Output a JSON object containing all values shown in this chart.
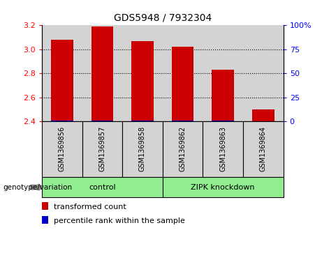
{
  "title": "GDS5948 / 7932304",
  "samples": [
    "GSM1369856",
    "GSM1369857",
    "GSM1369858",
    "GSM1369862",
    "GSM1369863",
    "GSM1369864"
  ],
  "red_values": [
    3.08,
    3.19,
    3.07,
    3.02,
    2.83,
    2.5
  ],
  "blue_values": [
    2.405,
    2.408,
    2.405,
    2.408,
    2.408,
    2.4
  ],
  "ylim": [
    2.4,
    3.2
  ],
  "yticks_left": [
    2.4,
    2.6,
    2.8,
    3.0,
    3.2
  ],
  "yticks_right": [
    0,
    25,
    50,
    75,
    100
  ],
  "group_label": "genotype/variation",
  "groups": [
    {
      "label": "control",
      "start": 0,
      "end": 3
    },
    {
      "label": "ZIPK knockdown",
      "start": 3,
      "end": 6
    }
  ],
  "legend_red": "transformed count",
  "legend_blue": "percentile rank within the sample",
  "bar_width": 0.55,
  "bar_color_red": "#cc0000",
  "bar_color_blue": "#0000cc",
  "sample_bg": "#d3d3d3",
  "group_color": "#90EE90",
  "title_fontsize": 10
}
